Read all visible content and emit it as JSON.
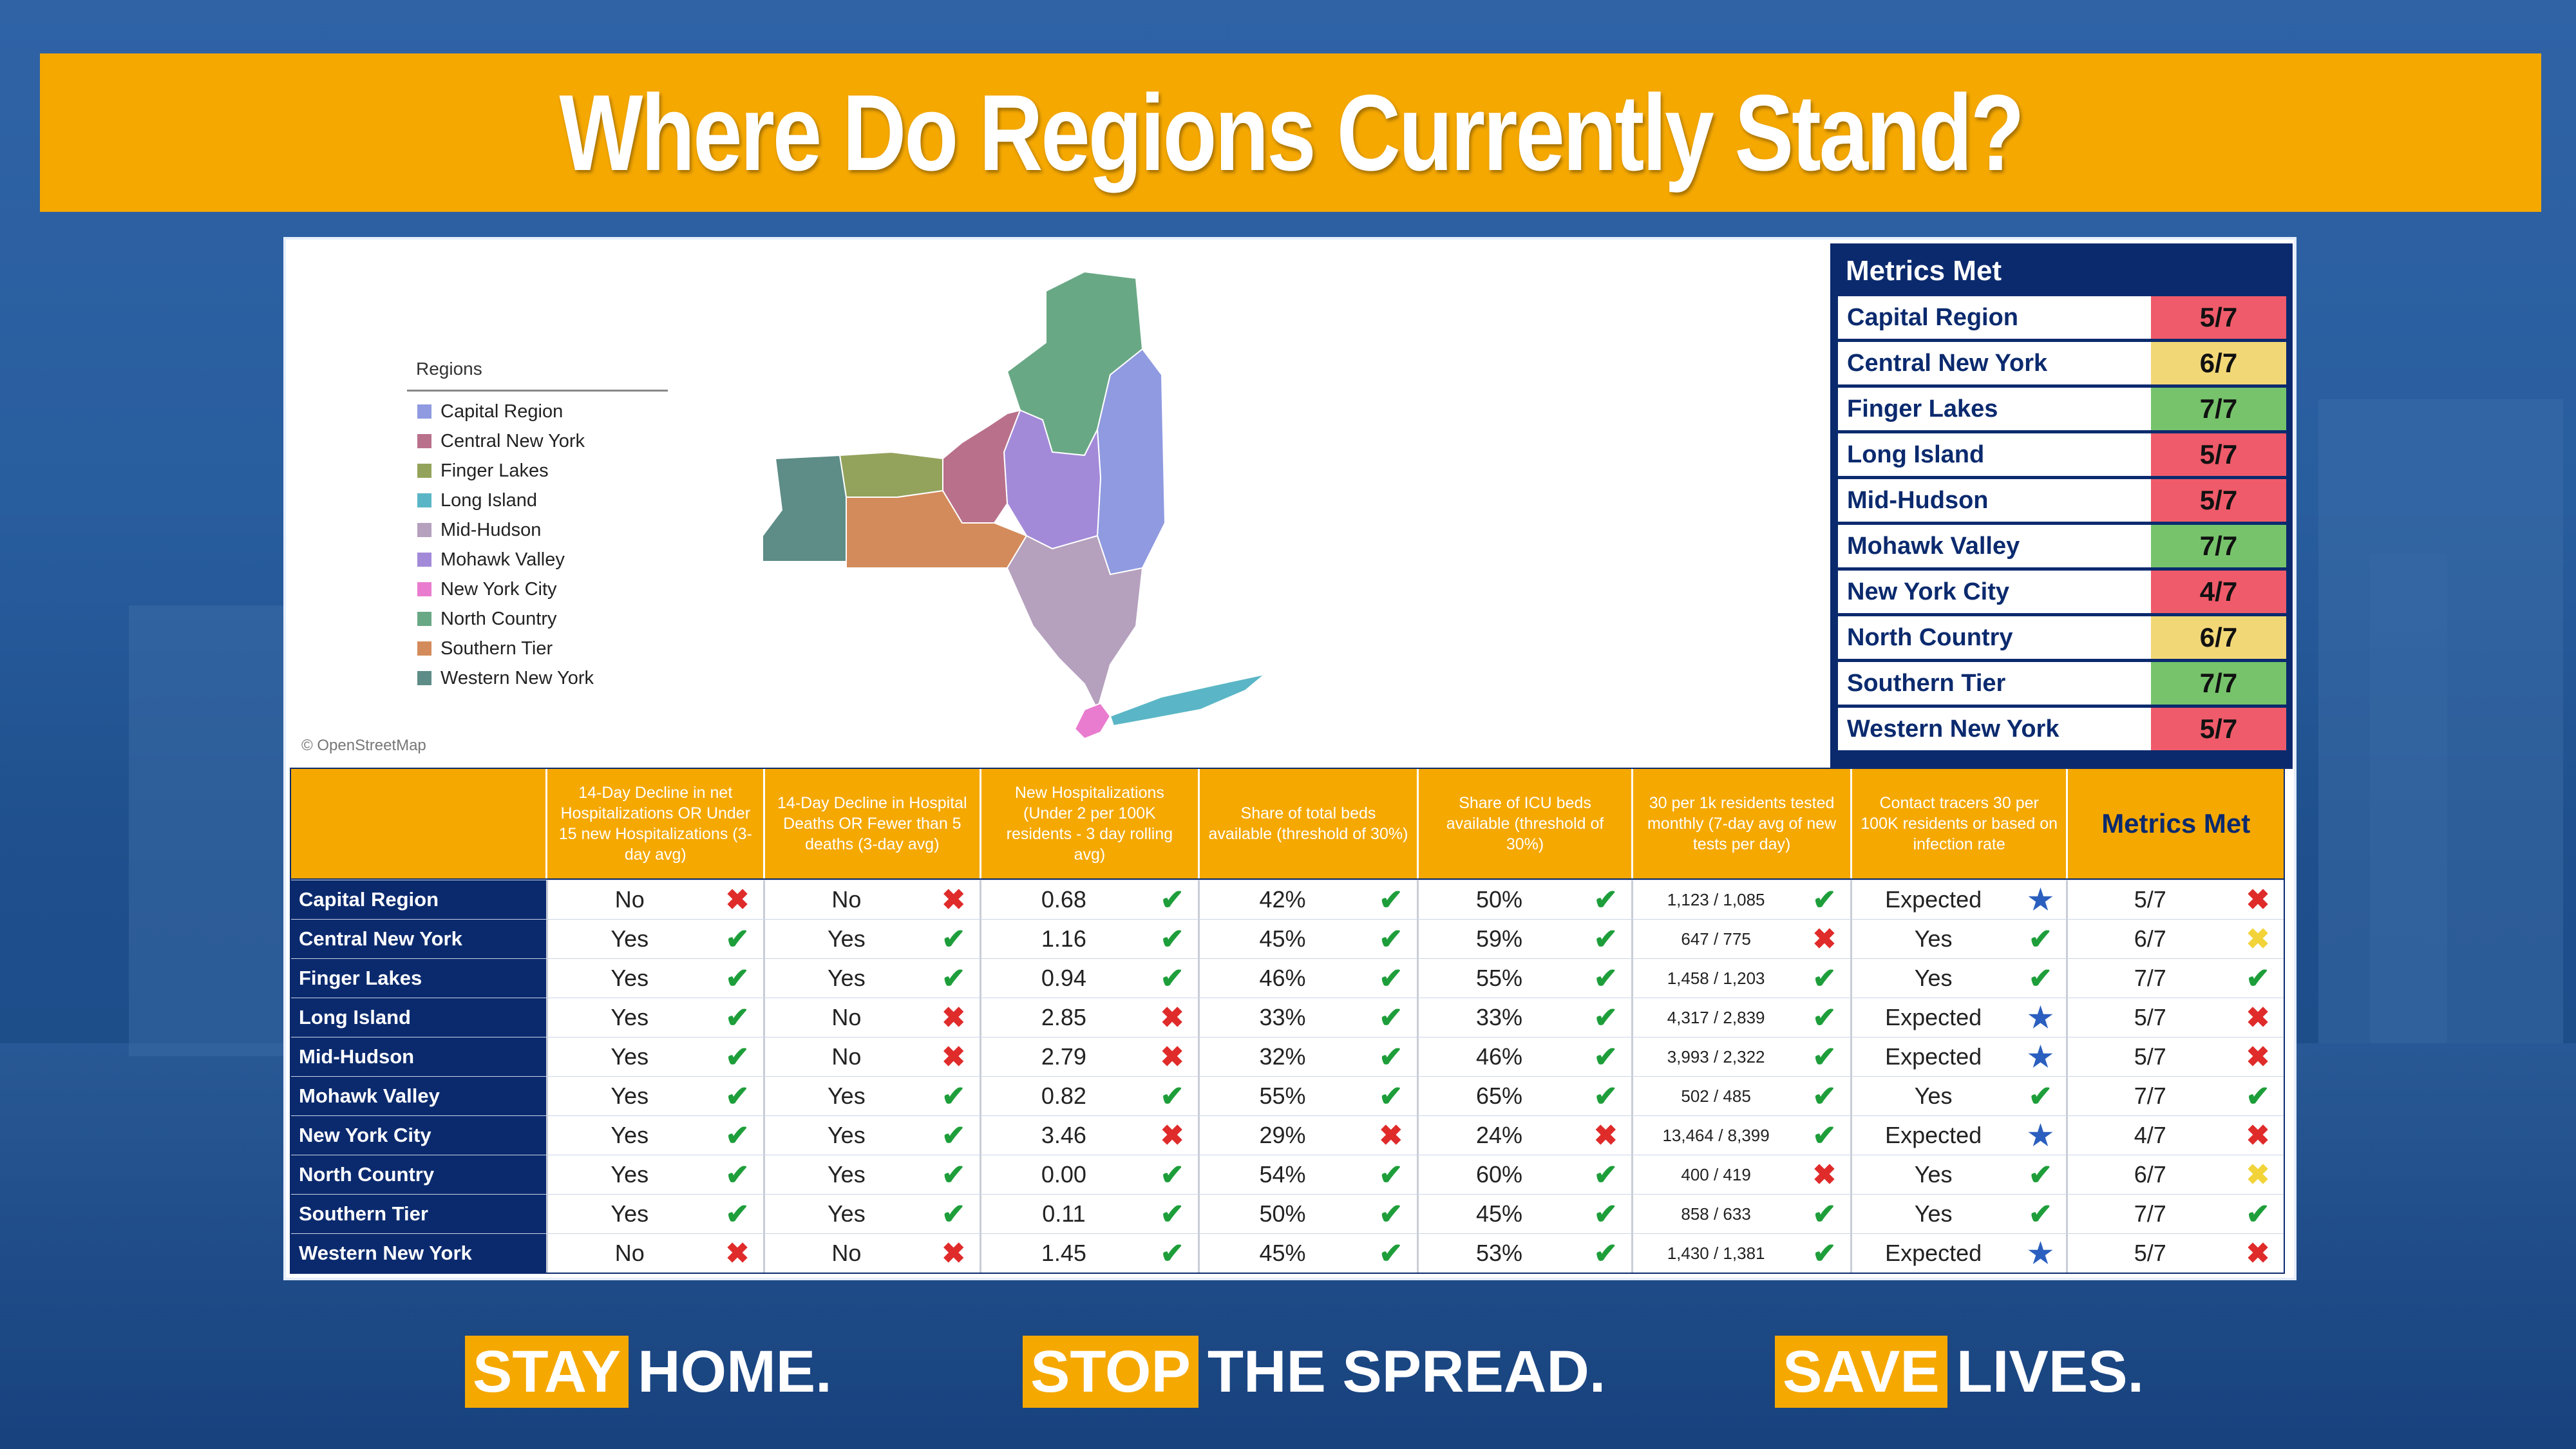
{
  "title": "Where Do Regions Currently Stand?",
  "colors": {
    "orange": "#f5a800",
    "navy": "#0b2a6e",
    "check_green": "#1e9e3a",
    "x_red": "#e02b2b",
    "x_yellow": "#f2d43a",
    "metrics_red": "#ef5b6a",
    "metrics_yellow": "#f2d777",
    "metrics_green": "#76c36b"
  },
  "map": {
    "legend_title": "Regions",
    "attribution": "© OpenStreetMap",
    "legend": [
      {
        "label": "Capital Region",
        "color": "#8f9ae0"
      },
      {
        "label": "Central New York",
        "color": "#b9708a"
      },
      {
        "label": "Finger Lakes",
        "color": "#93a35c"
      },
      {
        "label": "Long Island",
        "color": "#5ab6c6"
      },
      {
        "label": "Mid-Hudson",
        "color": "#b5a0bd"
      },
      {
        "label": "Mohawk Valley",
        "color": "#a38ad9"
      },
      {
        "label": "New York City",
        "color": "#e97ccf"
      },
      {
        "label": "North Country",
        "color": "#69a885"
      },
      {
        "label": "Southern Tier",
        "color": "#d38b5b"
      },
      {
        "label": "Western New York",
        "color": "#5e8c87"
      }
    ]
  },
  "metrics_met_panel": {
    "header": "Metrics Met",
    "rows": [
      {
        "region": "Capital Region",
        "value": "5/7",
        "status": "red"
      },
      {
        "region": "Central New York",
        "value": "6/7",
        "status": "yellow"
      },
      {
        "region": "Finger Lakes",
        "value": "7/7",
        "status": "green"
      },
      {
        "region": "Long Island",
        "value": "5/7",
        "status": "red"
      },
      {
        "region": "Mid-Hudson",
        "value": "5/7",
        "status": "red"
      },
      {
        "region": "Mohawk Valley",
        "value": "7/7",
        "status": "green"
      },
      {
        "region": "New York City",
        "value": "4/7",
        "status": "red"
      },
      {
        "region": "North Country",
        "value": "6/7",
        "status": "yellow"
      },
      {
        "region": "Southern Tier",
        "value": "7/7",
        "status": "green"
      },
      {
        "region": "Western New York",
        "value": "5/7",
        "status": "red"
      }
    ]
  },
  "table": {
    "headers": [
      "",
      "14-Day Decline in net Hospitalizations OR Under 15 new Hospitalizations (3-day avg)",
      "14-Day Decline in Hospital Deaths OR Fewer than 5 deaths (3-day avg)",
      "New Hospitalizations (Under 2 per 100K residents - 3 day rolling avg)",
      "Share of total beds available (threshold of 30%)",
      "Share of ICU beds available (threshold of 30%)",
      "30 per 1k residents tested monthly (7-day avg of new tests per day)",
      "Contact tracers 30 per 100K residents or based on infection rate",
      "Metrics Met"
    ],
    "rows": [
      {
        "region": "Capital Region",
        "cells": [
          [
            "No",
            "x"
          ],
          [
            "No",
            "x"
          ],
          [
            "0.68",
            "check"
          ],
          [
            "42%",
            "check"
          ],
          [
            "50%",
            "check"
          ],
          [
            "1,123 / 1,085",
            "check"
          ],
          [
            "Expected",
            "star"
          ],
          [
            "5/7",
            "x"
          ]
        ]
      },
      {
        "region": "Central New York",
        "cells": [
          [
            "Yes",
            "check"
          ],
          [
            "Yes",
            "check"
          ],
          [
            "1.16",
            "check"
          ],
          [
            "45%",
            "check"
          ],
          [
            "59%",
            "check"
          ],
          [
            "647 / 775",
            "x"
          ],
          [
            "Yes",
            "check"
          ],
          [
            "6/7",
            "x-yellow"
          ]
        ]
      },
      {
        "region": "Finger Lakes",
        "cells": [
          [
            "Yes",
            "check"
          ],
          [
            "Yes",
            "check"
          ],
          [
            "0.94",
            "check"
          ],
          [
            "46%",
            "check"
          ],
          [
            "55%",
            "check"
          ],
          [
            "1,458 / 1,203",
            "check"
          ],
          [
            "Yes",
            "check"
          ],
          [
            "7/7",
            "check"
          ]
        ]
      },
      {
        "region": "Long Island",
        "cells": [
          [
            "Yes",
            "check"
          ],
          [
            "No",
            "x"
          ],
          [
            "2.85",
            "x"
          ],
          [
            "33%",
            "check"
          ],
          [
            "33%",
            "check"
          ],
          [
            "4,317 / 2,839",
            "check"
          ],
          [
            "Expected",
            "star"
          ],
          [
            "5/7",
            "x"
          ]
        ]
      },
      {
        "region": "Mid-Hudson",
        "cells": [
          [
            "Yes",
            "check"
          ],
          [
            "No",
            "x"
          ],
          [
            "2.79",
            "x"
          ],
          [
            "32%",
            "check"
          ],
          [
            "46%",
            "check"
          ],
          [
            "3,993 / 2,322",
            "check"
          ],
          [
            "Expected",
            "star"
          ],
          [
            "5/7",
            "x"
          ]
        ]
      },
      {
        "region": "Mohawk Valley",
        "cells": [
          [
            "Yes",
            "check"
          ],
          [
            "Yes",
            "check"
          ],
          [
            "0.82",
            "check"
          ],
          [
            "55%",
            "check"
          ],
          [
            "65%",
            "check"
          ],
          [
            "502 / 485",
            "check"
          ],
          [
            "Yes",
            "check"
          ],
          [
            "7/7",
            "check"
          ]
        ]
      },
      {
        "region": "New York City",
        "cells": [
          [
            "Yes",
            "check"
          ],
          [
            "Yes",
            "check"
          ],
          [
            "3.46",
            "x"
          ],
          [
            "29%",
            "x"
          ],
          [
            "24%",
            "x"
          ],
          [
            "13,464 / 8,399",
            "check"
          ],
          [
            "Expected",
            "star"
          ],
          [
            "4/7",
            "x"
          ]
        ]
      },
      {
        "region": "North Country",
        "cells": [
          [
            "Yes",
            "check"
          ],
          [
            "Yes",
            "check"
          ],
          [
            "0.00",
            "check"
          ],
          [
            "54%",
            "check"
          ],
          [
            "60%",
            "check"
          ],
          [
            "400 / 419",
            "x"
          ],
          [
            "Yes",
            "check"
          ],
          [
            "6/7",
            "x-yellow"
          ]
        ]
      },
      {
        "region": "Southern Tier",
        "cells": [
          [
            "Yes",
            "check"
          ],
          [
            "Yes",
            "check"
          ],
          [
            "0.11",
            "check"
          ],
          [
            "50%",
            "check"
          ],
          [
            "45%",
            "check"
          ],
          [
            "858 / 633",
            "check"
          ],
          [
            "Yes",
            "check"
          ],
          [
            "7/7",
            "check"
          ]
        ]
      },
      {
        "region": "Western New York",
        "cells": [
          [
            "No",
            "x"
          ],
          [
            "No",
            "x"
          ],
          [
            "1.45",
            "check"
          ],
          [
            "45%",
            "check"
          ],
          [
            "53%",
            "check"
          ],
          [
            "1,430 / 1,381",
            "check"
          ],
          [
            "Expected",
            "star"
          ],
          [
            "5/7",
            "x"
          ]
        ]
      }
    ]
  },
  "footer": [
    {
      "highlight": "STAY",
      "rest": "HOME."
    },
    {
      "highlight": "STOP",
      "rest": "THE SPREAD."
    },
    {
      "highlight": "SAVE",
      "rest": "LIVES."
    }
  ]
}
